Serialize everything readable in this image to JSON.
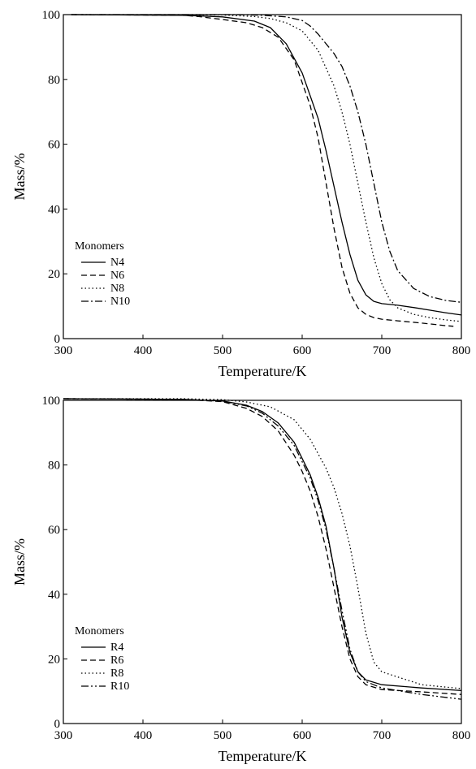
{
  "chart_data": [
    {
      "type": "line",
      "title": "",
      "xlabel": "Temperature/K",
      "ylabel": "Mass/%",
      "xlim": [
        300,
        800
      ],
      "ylim": [
        0,
        100
      ],
      "xticks": [
        300,
        400,
        500,
        600,
        700,
        800
      ],
      "yticks": [
        0,
        20,
        40,
        60,
        80,
        100
      ],
      "grid": false,
      "legend": {
        "title": "Monomers",
        "position": "bottom-left"
      },
      "series": [
        {
          "name": "N4",
          "dash": "solid",
          "x": [
            310,
            450,
            500,
            540,
            560,
            580,
            600,
            620,
            630,
            640,
            650,
            660,
            670,
            680,
            690,
            700,
            720,
            740,
            760,
            780,
            800
          ],
          "y": [
            100,
            99.8,
            99.3,
            98,
            96,
            91,
            82,
            68,
            58,
            47,
            36,
            26,
            18,
            13.5,
            11.5,
            10.8,
            10.3,
            9.6,
            8.8,
            8,
            7.3
          ]
        },
        {
          "name": "N6",
          "dash": "dashed",
          "x": [
            310,
            450,
            470,
            500,
            530,
            550,
            570,
            590,
            610,
            620,
            630,
            640,
            650,
            660,
            670,
            680,
            690,
            700,
            720,
            750,
            780,
            790
          ],
          "y": [
            100,
            99.8,
            99.4,
            98.5,
            97.5,
            96,
            93,
            86,
            72,
            62,
            48,
            34,
            22,
            14,
            9.5,
            7.5,
            6.5,
            6,
            5.5,
            4.8,
            4,
            3.8
          ]
        },
        {
          "name": "N8",
          "dash": "dotted",
          "x": [
            310,
            500,
            540,
            560,
            580,
            600,
            620,
            640,
            650,
            660,
            670,
            680,
            690,
            700,
            710,
            720,
            740,
            760,
            780,
            800
          ],
          "y": [
            100,
            99.9,
            99.4,
            98.8,
            97.5,
            95,
            89,
            78,
            70,
            60,
            48,
            36,
            25,
            17,
            12,
            9.5,
            7.5,
            6.5,
            5.8,
            5.3
          ]
        },
        {
          "name": "N10",
          "dash": "dashdot",
          "x": [
            310,
            520,
            550,
            580,
            600,
            610,
            620,
            640,
            650,
            660,
            670,
            680,
            690,
            700,
            710,
            720,
            740,
            760,
            780,
            800
          ],
          "y": [
            100,
            100,
            99.8,
            99.3,
            98.2,
            96.5,
            94,
            88,
            84,
            78,
            70,
            60,
            48,
            36,
            27,
            21,
            15.5,
            13,
            11.8,
            11.2
          ]
        }
      ]
    },
    {
      "type": "line",
      "title": "",
      "xlabel": "Temperature/K",
      "ylabel": "Mass/%",
      "xlim": [
        300,
        800
      ],
      "ylim": [
        0,
        100
      ],
      "xticks": [
        300,
        400,
        500,
        600,
        700,
        800
      ],
      "yticks": [
        0,
        20,
        40,
        60,
        80,
        100
      ],
      "grid": false,
      "legend": {
        "title": "Monomers",
        "position": "bottom-left"
      },
      "series": [
        {
          "name": "R4",
          "dash": "solid",
          "x": [
            300,
            450,
            500,
            530,
            550,
            570,
            590,
            610,
            620,
            630,
            640,
            650,
            660,
            670,
            680,
            700,
            750,
            800
          ],
          "y": [
            100.5,
            100.3,
            99.8,
            98.5,
            96.5,
            93,
            87,
            77,
            70,
            61,
            48,
            33,
            22,
            16,
            13.5,
            12,
            11,
            10.2
          ]
        },
        {
          "name": "R6",
          "dash": "dashed",
          "x": [
            300,
            450,
            500,
            530,
            550,
            570,
            590,
            600,
            610,
            620,
            630,
            640,
            650,
            660,
            670,
            680,
            700,
            750,
            800
          ],
          "y": [
            100.5,
            100.3,
            99.6,
            97.5,
            95,
            90.5,
            83,
            78,
            72,
            64,
            54,
            42,
            30,
            20,
            14.5,
            12,
            10.5,
            9.8,
            9
          ]
        },
        {
          "name": "R8",
          "dash": "dotted",
          "x": [
            300,
            450,
            500,
            530,
            560,
            590,
            610,
            630,
            640,
            650,
            660,
            670,
            680,
            690,
            700,
            750,
            800
          ],
          "y": [
            100.5,
            100.5,
            100.2,
            99.5,
            98,
            94,
            88,
            79,
            73,
            65,
            55,
            42,
            28,
            19,
            16,
            12,
            10.8
          ]
        },
        {
          "name": "R10",
          "dash": "dashdotdot",
          "x": [
            300,
            450,
            500,
            530,
            550,
            570,
            590,
            610,
            620,
            630,
            640,
            650,
            660,
            670,
            680,
            700,
            750,
            800
          ],
          "y": [
            100.5,
            100.3,
            99.7,
            98.3,
            96,
            92,
            86,
            76,
            69,
            60,
            48,
            35,
            23,
            16,
            13,
            11,
            9,
            7.5
          ]
        }
      ]
    }
  ]
}
